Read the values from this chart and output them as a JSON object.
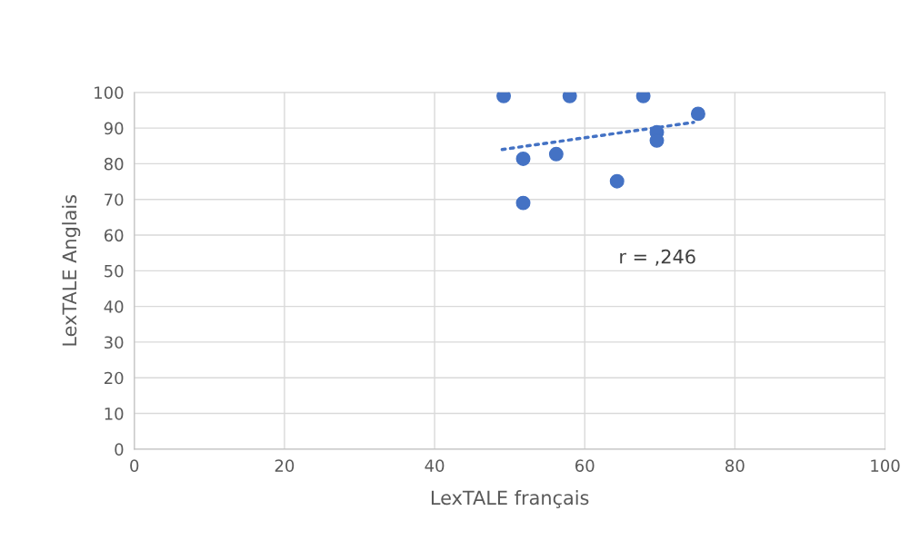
{
  "chart_data": {
    "type": "scatter",
    "xlabel": "LexTALE français",
    "ylabel": "LexTALE Anglais",
    "xlim": [
      0,
      100
    ],
    "xticks": [
      0,
      20,
      40,
      60,
      80,
      100
    ],
    "ylim": [
      0,
      100
    ],
    "yticks": [
      0,
      10,
      20,
      30,
      40,
      50,
      60,
      70,
      80,
      90,
      100
    ],
    "grid": true,
    "marker": "circle",
    "legend": false,
    "series": [
      {
        "color": "#4472c4",
        "x": [
          49.2,
          58.0,
          67.8,
          75.1,
          69.6,
          69.6,
          56.2,
          51.8,
          64.3,
          51.8
        ],
        "values": [
          99,
          99,
          99,
          94,
          88.8,
          86.5,
          82.7,
          81.4,
          75.1,
          69
        ]
      },
      {
        "type": "line",
        "color": "#4472c4",
        "line_style": "dotted",
        "marker": "none",
        "x": [
          49.0,
          74.5
        ],
        "values": [
          84.0,
          91.6
        ]
      }
    ],
    "annotations": [
      "r = ,246"
    ]
  }
}
